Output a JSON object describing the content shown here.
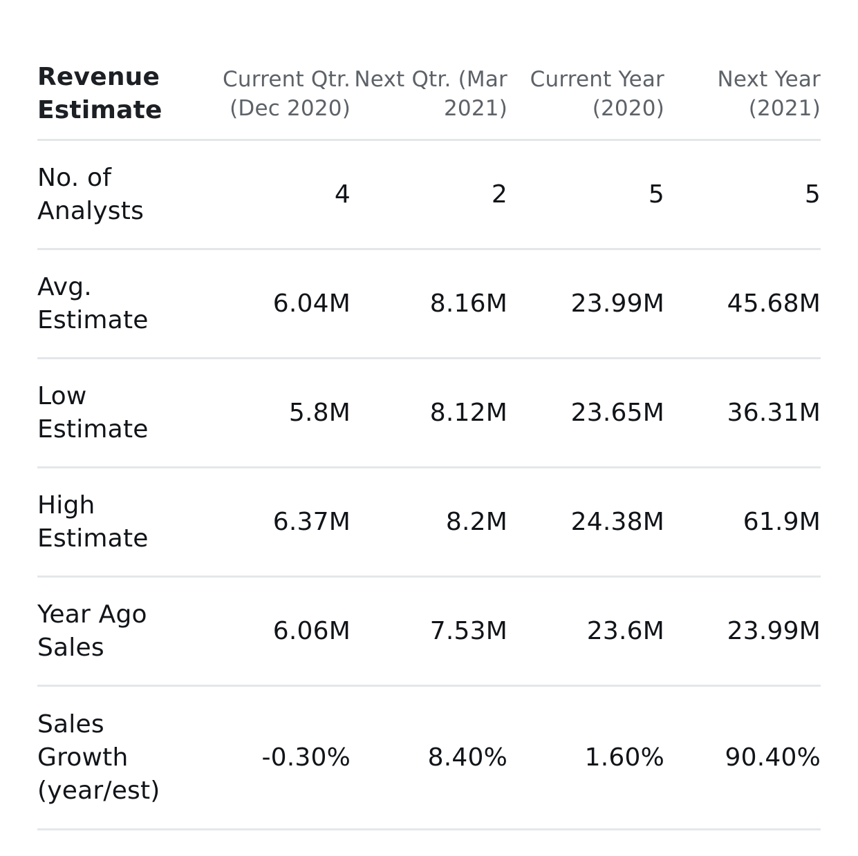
{
  "table": {
    "title": "Revenue\nEstimate",
    "columns": [
      "Current Qtr.\n(Dec 2020)",
      "Next Qtr. (Mar\n2021)",
      "Current Year\n(2020)",
      "Next Year\n(2021)"
    ],
    "rows": [
      {
        "label": "No. of\nAnalysts",
        "values": [
          "4",
          "2",
          "5",
          "5"
        ]
      },
      {
        "label": "Avg.\nEstimate",
        "values": [
          "6.04M",
          "8.16M",
          "23.99M",
          "45.68M"
        ]
      },
      {
        "label": "Low\nEstimate",
        "values": [
          "5.8M",
          "8.12M",
          "23.65M",
          "36.31M"
        ]
      },
      {
        "label": "High\nEstimate",
        "values": [
          "6.37M",
          "8.2M",
          "24.38M",
          "61.9M"
        ]
      },
      {
        "label": "Year Ago\nSales",
        "values": [
          "6.06M",
          "7.53M",
          "23.6M",
          "23.99M"
        ]
      },
      {
        "label": "Sales\nGrowth\n(year/est)",
        "values": [
          "-0.30%",
          "8.40%",
          "1.60%",
          "90.40%"
        ]
      }
    ]
  }
}
